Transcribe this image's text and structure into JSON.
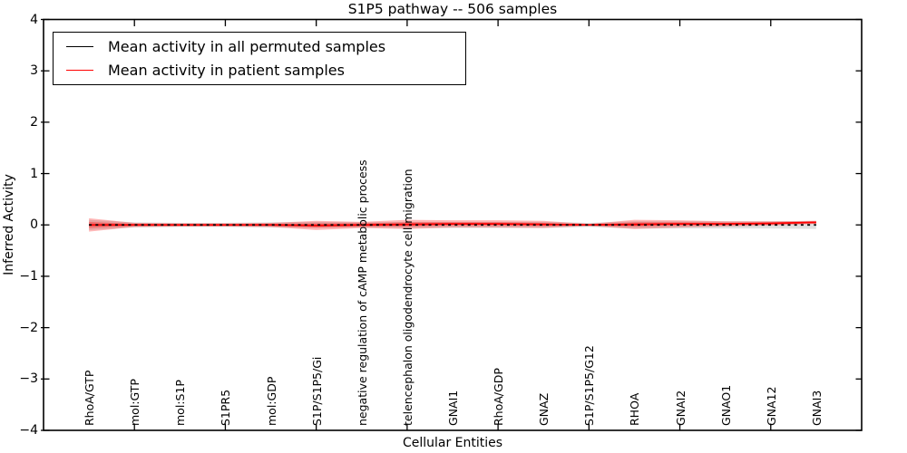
{
  "title": "S1P5 pathway -- 506 samples",
  "axes": {
    "xlabel": "Cellular Entities",
    "ylabel": "Inferred Activity"
  },
  "legend": {
    "position": "upper left",
    "entries": [
      {
        "label": "Mean activity in all permuted samples",
        "color": "#000000"
      },
      {
        "label": "Mean activity in patient samples",
        "color": "#ff0000"
      }
    ]
  },
  "colors": {
    "axis": "#000000",
    "permuted_line": "#000000",
    "patient_line": "#ff0000",
    "patient_band_fill": "#ff0000",
    "permuted_band_fill": "#000000",
    "background": "#ffffff"
  },
  "chart_data": {
    "type": "line",
    "title": "S1P5 pathway -- 506 samples",
    "xlabel": "Cellular Entities",
    "ylabel": "Inferred Activity",
    "ylim": [
      -4,
      4
    ],
    "yticks": [
      4,
      3,
      2,
      1,
      0,
      -1,
      -2,
      -3,
      -4
    ],
    "xlim": [
      0,
      18
    ],
    "xtick_positions": [
      2,
      4,
      6,
      8,
      10,
      12,
      14,
      16
    ],
    "grid": false,
    "legend_position": "upper left",
    "categories": [
      "RhoA/GTP",
      "mol:GTP",
      "mol:S1P",
      "S1PR5",
      "mol:GDP",
      "S1P/S1P5/Gi",
      "negative regulation of cAMP metabolic process",
      "telencephalon oligodendrocyte cell migration",
      "GNAI1",
      "RhoA/GDP",
      "GNAZ",
      "S1P/S1P5/G12",
      "RHOA",
      "GNAI2",
      "GNAO1",
      "GNA12",
      "GNAI3"
    ],
    "x": [
      1,
      2,
      3,
      4,
      5,
      6,
      7,
      8,
      9,
      10,
      11,
      12,
      13,
      14,
      15,
      16,
      17
    ],
    "series": [
      {
        "key": "permuted",
        "name": "Mean activity in all permuted samples",
        "color": "#000000",
        "line_style": "dashed",
        "values": [
          0,
          0,
          0,
          0,
          0,
          0,
          0,
          0,
          0,
          0,
          0,
          0,
          0,
          0,
          0,
          0,
          0
        ]
      },
      {
        "key": "patient",
        "name": "Mean activity in patient samples",
        "color": "#ff0000",
        "line_style": "solid",
        "values": [
          0,
          0,
          0,
          0,
          0,
          -0.01,
          0,
          0.01,
          0.02,
          0.02,
          0.01,
          0,
          0.01,
          0.02,
          0.02,
          0.03,
          0.05
        ]
      }
    ],
    "bands": [
      {
        "name": "permuted-std-band",
        "center_key": "permuted",
        "color": "#000000",
        "opacity": 0.12,
        "half_width": [
          0.1,
          0.05,
          0.04,
          0.04,
          0.05,
          0.06,
          0.05,
          0.06,
          0.06,
          0.06,
          0.06,
          0.04,
          0.07,
          0.07,
          0.07,
          0.07,
          0.08
        ]
      },
      {
        "name": "patient-std-band-outer",
        "center_key": "patient",
        "color": "#ff0000",
        "opacity": 0.28,
        "half_width": [
          0.13,
          0.04,
          0.03,
          0.03,
          0.04,
          0.09,
          0.06,
          0.09,
          0.07,
          0.07,
          0.07,
          0.02,
          0.09,
          0.07,
          0.05,
          0.04,
          0.03
        ]
      },
      {
        "name": "patient-std-band-inner",
        "center_key": "patient",
        "color": "#ff0000",
        "opacity": 0.3,
        "half_width": [
          0.06,
          0.02,
          0.015,
          0.015,
          0.02,
          0.04,
          0.03,
          0.04,
          0.03,
          0.03,
          0.03,
          0.01,
          0.04,
          0.03,
          0.025,
          0.02,
          0.015
        ]
      }
    ]
  }
}
